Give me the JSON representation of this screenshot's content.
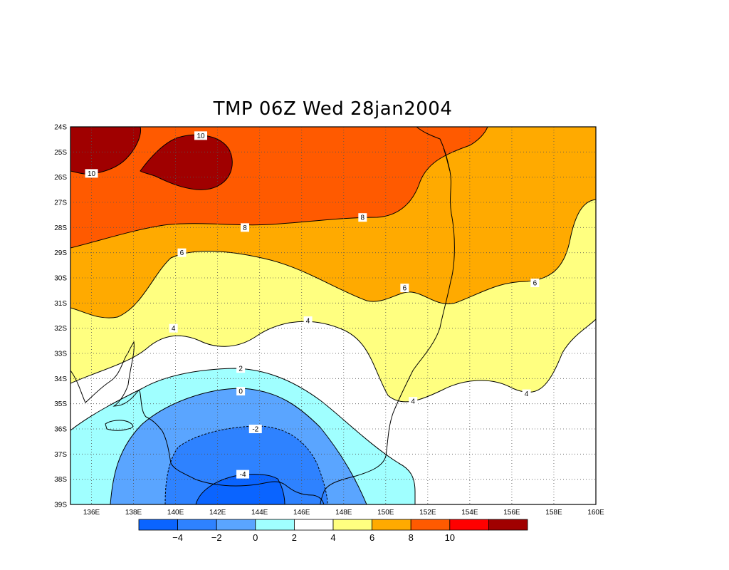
{
  "title": "TMP 06Z Wed 28jan2004",
  "chart_data": {
    "type": "map",
    "variable": "TMP",
    "lon_range": [
      135,
      160
    ],
    "lat_range": [
      -39,
      -24
    ],
    "lat_ticks": [
      "24S",
      "25S",
      "26S",
      "27S",
      "28S",
      "29S",
      "30S",
      "31S",
      "32S",
      "33S",
      "34S",
      "35S",
      "36S",
      "37S",
      "38S",
      "39S"
    ],
    "lon_ticks": [
      "136E",
      "138E",
      "140E",
      "142E",
      "144E",
      "146E",
      "148E",
      "150E",
      "152E",
      "154E",
      "156E",
      "158E",
      "160E"
    ],
    "contour_labels": [
      {
        "text": "10",
        "lon": 141.2,
        "lat": -24.35
      },
      {
        "text": "10",
        "lon": 136.0,
        "lat": -25.85
      },
      {
        "text": "8",
        "lon": 143.3,
        "lat": -28.0
      },
      {
        "text": "8",
        "lon": 148.9,
        "lat": -27.6
      },
      {
        "text": "6",
        "lon": 140.3,
        "lat": -29.0
      },
      {
        "text": "6",
        "lon": 150.9,
        "lat": -30.4
      },
      {
        "text": "6",
        "lon": 157.1,
        "lat": -30.2
      },
      {
        "text": "4",
        "lon": 139.9,
        "lat": -32.0
      },
      {
        "text": "4",
        "lon": 146.3,
        "lat": -31.7
      },
      {
        "text": "4",
        "lon": 151.3,
        "lat": -34.9
      },
      {
        "text": "4",
        "lon": 156.7,
        "lat": -34.6
      },
      {
        "text": "2",
        "lon": 143.1,
        "lat": -33.6
      },
      {
        "text": "0",
        "lon": 143.1,
        "lat": -34.5
      },
      {
        "text": "-2",
        "lon": 143.8,
        "lat": -36.0
      },
      {
        "text": "-4",
        "lon": 143.2,
        "lat": -37.8
      }
    ],
    "colorbar": {
      "colors": [
        "#0a64ff",
        "#2e82ff",
        "#5aa5ff",
        "#a0ffff",
        "#ffffff",
        "#ffff80",
        "#ffaa00",
        "#ff5a00",
        "#ff0000",
        "#a00000"
      ],
      "labels": [
        "-4",
        "-2",
        "0",
        "2",
        "4",
        "6",
        "8",
        "10"
      ]
    }
  }
}
